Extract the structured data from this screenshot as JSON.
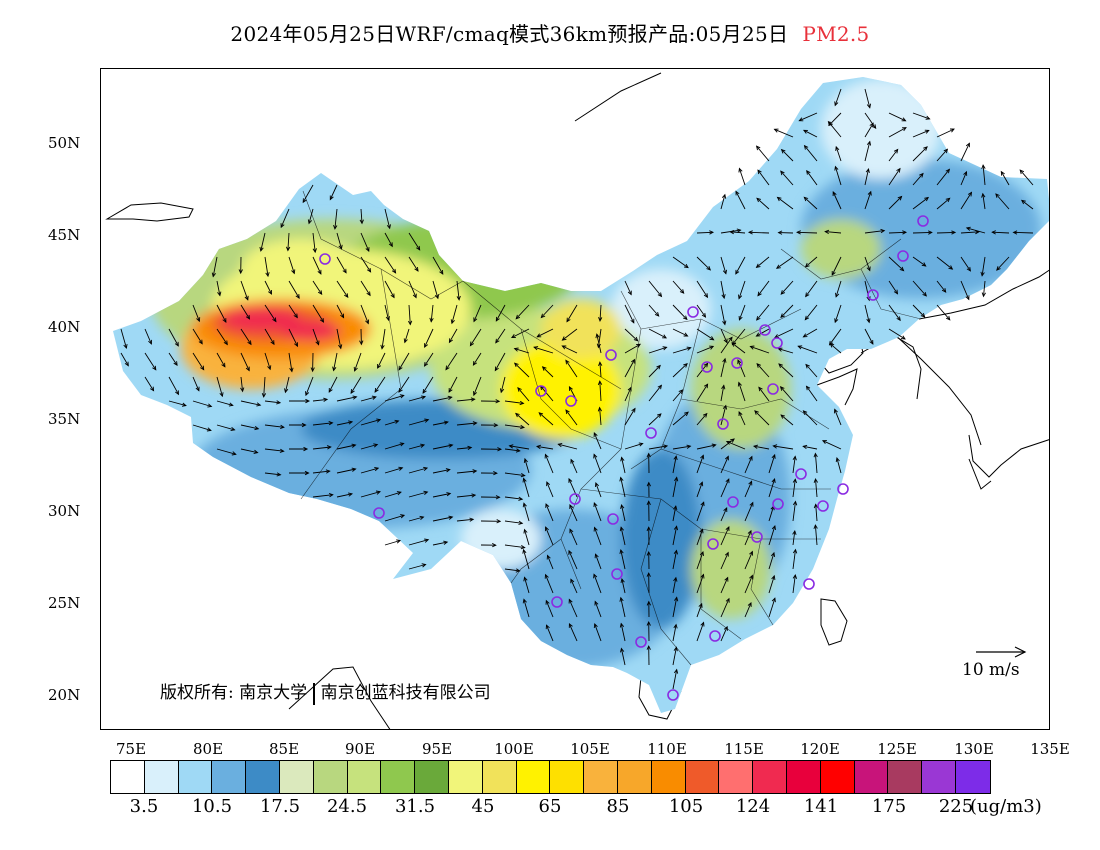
{
  "title": {
    "text": "2024年05月25日WRF/cmaq模式36km预报产品:05月25日",
    "pollutant": "PM2.5"
  },
  "axes": {
    "lat_labels": [
      "50N",
      "45N",
      "40N",
      "35N",
      "30N",
      "25N",
      "20N"
    ],
    "lon_labels": [
      "75E",
      "80E",
      "85E",
      "90E",
      "95E",
      "100E",
      "105E",
      "110E",
      "115E",
      "120E",
      "125E",
      "130E",
      "135E"
    ]
  },
  "copyright": {
    "prefix": "版权所有:",
    "org1": "南京大学",
    "org2": "南京创蓝科技有限公司"
  },
  "reference_vector": {
    "label": "10 m/s"
  },
  "colorbar": {
    "colors": [
      "#ffffff",
      "#d9f0fb",
      "#9fd9f5",
      "#6aafdf",
      "#3d8bc6",
      "#dbe9bd",
      "#b8d77f",
      "#c6e27d",
      "#8fc84e",
      "#6aa93a",
      "#f1f57a",
      "#f1e25a",
      "#fff200",
      "#fee000",
      "#f9b23c",
      "#f7a72a",
      "#f98c00",
      "#ef5a2a",
      "#ff6f6f",
      "#f02a50",
      "#e8003c",
      "#ff0000",
      "#c8147a",
      "#a83a60",
      "#9a37d4",
      "#7d2ce8"
    ],
    "labels": [
      "3.5",
      "10.5",
      "17.5",
      "24.5",
      "31.5",
      "45",
      "65",
      "85",
      "105",
      "124",
      "141",
      "175",
      "225"
    ],
    "unit": "(ug/m3)"
  }
}
